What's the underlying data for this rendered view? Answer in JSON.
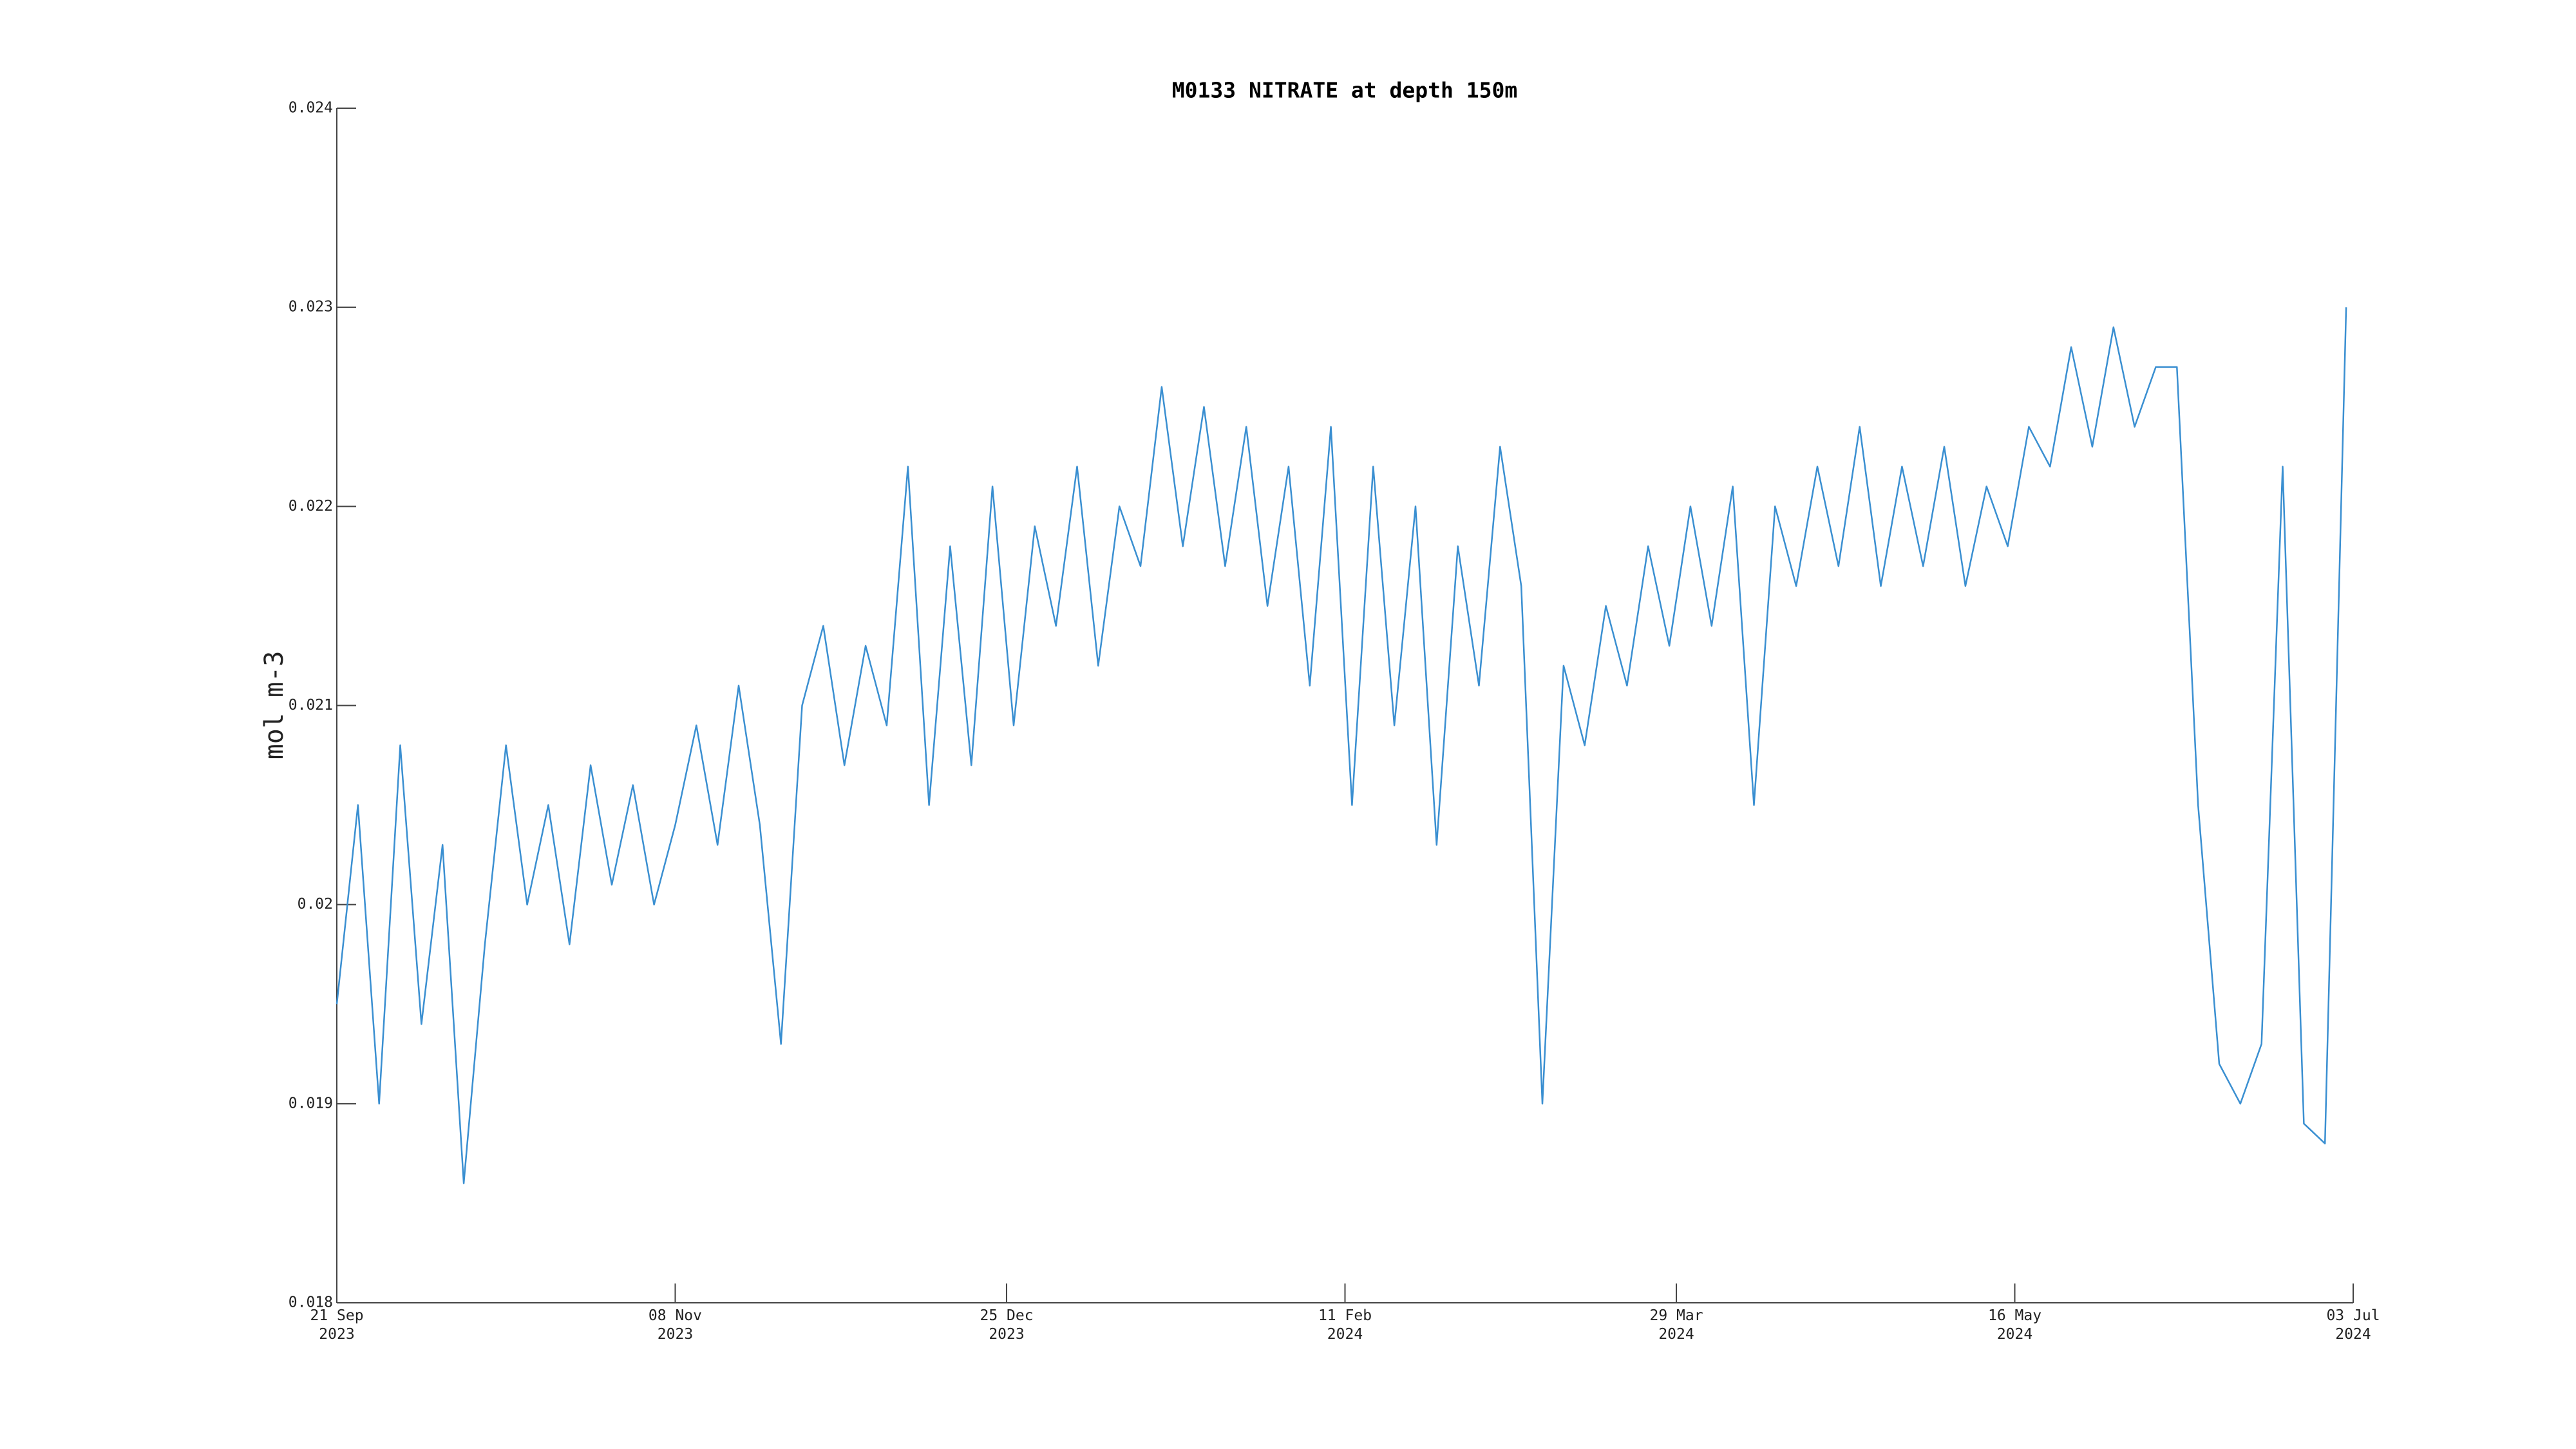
{
  "chart_data": {
    "type": "line",
    "title": "M0133 NITRATE at depth 150m",
    "y_label": "mol m-3",
    "x": [
      "2023-09-21",
      "2023-09-24",
      "2023-09-27",
      "2023-09-30",
      "2023-10-03",
      "2023-10-06",
      "2023-10-09",
      "2023-10-12",
      "2023-10-15",
      "2023-10-18",
      "2023-10-21",
      "2023-10-24",
      "2023-10-27",
      "2023-10-30",
      "2023-11-02",
      "2023-11-05",
      "2023-11-08",
      "2023-11-11",
      "2023-11-14",
      "2023-11-17",
      "2023-11-20",
      "2023-11-23",
      "2023-11-26",
      "2023-11-29",
      "2023-12-02",
      "2023-12-05",
      "2023-12-08",
      "2023-12-11",
      "2023-12-14",
      "2023-12-17",
      "2023-12-20",
      "2023-12-23",
      "2023-12-26",
      "2023-12-29",
      "2024-01-01",
      "2024-01-04",
      "2024-01-07",
      "2024-01-10",
      "2024-01-13",
      "2024-01-16",
      "2024-01-19",
      "2024-01-22",
      "2024-01-25",
      "2024-01-28",
      "2024-01-31",
      "2024-02-03",
      "2024-02-06",
      "2024-02-09",
      "2024-02-12",
      "2024-02-15",
      "2024-02-18",
      "2024-02-21",
      "2024-02-24",
      "2024-02-27",
      "2024-03-01",
      "2024-03-04",
      "2024-03-07",
      "2024-03-10",
      "2024-03-13",
      "2024-03-16",
      "2024-03-19",
      "2024-03-22",
      "2024-03-25",
      "2024-03-28",
      "2024-03-31",
      "2024-04-03",
      "2024-04-06",
      "2024-04-09",
      "2024-04-12",
      "2024-04-15",
      "2024-04-18",
      "2024-04-21",
      "2024-04-24",
      "2024-04-27",
      "2024-04-30",
      "2024-05-03",
      "2024-05-06",
      "2024-05-09",
      "2024-05-12",
      "2024-05-15",
      "2024-05-18",
      "2024-05-21",
      "2024-05-24",
      "2024-05-27",
      "2024-05-30",
      "2024-06-02",
      "2024-06-05",
      "2024-06-08",
      "2024-06-11",
      "2024-06-14",
      "2024-06-17",
      "2024-06-20",
      "2024-06-23",
      "2024-06-26",
      "2024-06-29",
      "2024-07-02"
    ],
    "series": [
      {
        "color": "#3a8fd1",
        "values": [
          0.0195,
          0.0205,
          0.019,
          0.0208,
          0.0194,
          0.0203,
          0.0186,
          0.0198,
          0.0208,
          0.02,
          0.0205,
          0.0198,
          0.0207,
          0.0201,
          0.0206,
          0.02,
          0.0204,
          0.0209,
          0.0203,
          0.0211,
          0.0204,
          0.0193,
          0.021,
          0.0214,
          0.0207,
          0.0213,
          0.0209,
          0.0222,
          0.0205,
          0.0218,
          0.0207,
          0.0221,
          0.0209,
          0.0219,
          0.0214,
          0.0222,
          0.0212,
          0.022,
          0.0217,
          0.0226,
          0.0218,
          0.0225,
          0.0217,
          0.0224,
          0.0215,
          0.0222,
          0.0211,
          0.0224,
          0.0205,
          0.0222,
          0.0209,
          0.022,
          0.0203,
          0.0218,
          0.0211,
          0.0223,
          0.0216,
          0.019,
          0.0212,
          0.0208,
          0.0215,
          0.0211,
          0.0218,
          0.0213,
          0.022,
          0.0214,
          0.0221,
          0.0205,
          0.022,
          0.0216,
          0.0222,
          0.0217,
          0.0224,
          0.0216,
          0.0222,
          0.0217,
          0.0223,
          0.0216,
          0.0221,
          0.0218,
          0.0224,
          0.0222,
          0.0228,
          0.0223,
          0.0229,
          0.0224,
          0.0227,
          0.0227,
          0.0205,
          0.0192,
          0.019,
          0.0193,
          0.0222,
          0.0189,
          0.0188,
          0.023
        ]
      }
    ],
    "xlim": [
      "2023-09-21",
      "2024-07-03"
    ],
    "xticks": [
      {
        "value": "2023-09-21",
        "label": "21 Sep\n2023"
      },
      {
        "value": "2023-11-08",
        "label": "08 Nov\n2023"
      },
      {
        "value": "2023-12-25",
        "label": "25 Dec\n2023"
      },
      {
        "value": "2024-02-11",
        "label": "11 Feb\n2024"
      },
      {
        "value": "2024-03-29",
        "label": "29 Mar\n2024"
      },
      {
        "value": "2024-05-16",
        "label": "16 May\n2024"
      },
      {
        "value": "2024-07-03",
        "label": "03 Jul\n2024"
      }
    ],
    "ylim": [
      0.018,
      0.024
    ],
    "yticks": [
      0.018,
      0.019,
      0.02,
      0.021,
      0.022,
      0.023,
      0.024
    ]
  }
}
